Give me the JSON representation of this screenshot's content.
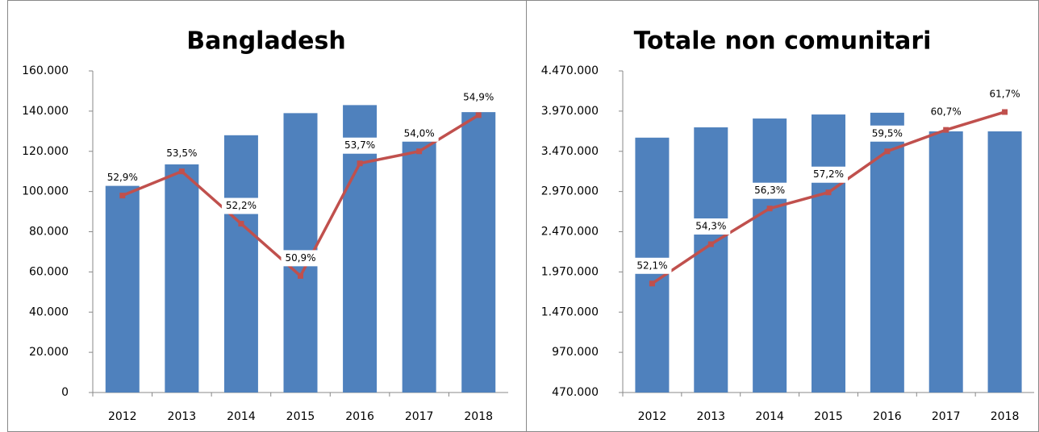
{
  "chart_data": [
    {
      "type": "bar-line",
      "title": "Bangladesh",
      "categories": [
        "2012",
        "2013",
        "2014",
        "2015",
        "2016",
        "2017",
        "2018"
      ],
      "series": [
        {
          "type": "bar",
          "color": "#4f81bd",
          "values": [
            107000,
            113500,
            128000,
            139000,
            143000,
            125000,
            139500
          ]
        },
        {
          "type": "line",
          "axis": "y2",
          "color": "#c0504d",
          "values": [
            52.9,
            53.5,
            52.2,
            50.9,
            53.7,
            54.0,
            54.9
          ],
          "value_labels": [
            "52,9%",
            "53,5%",
            "52,2%",
            "50,9%",
            "53,7%",
            "54,0%",
            "54,9%"
          ]
        }
      ],
      "ylim": [
        0,
        160000
      ],
      "yticks": [
        0,
        {
          "value": 20000,
          "label": "20.000"
        },
        {
          "value": 40000,
          "label": "40.000"
        },
        {
          "value": 60000,
          "label": "60.000"
        },
        {
          "value": 80000,
          "label": "80.000"
        },
        {
          "value": 100000,
          "label": "100.000"
        },
        {
          "value": 120000,
          "label": "120.000"
        },
        {
          "value": 140000,
          "label": "140.000"
        },
        {
          "value": 160000,
          "label": "160.000"
        }
      ],
      "y2lim": [
        48,
        56
      ]
    },
    {
      "type": "bar-line",
      "title": "Totale non comunitari",
      "categories": [
        "2012",
        "2013",
        "2014",
        "2015",
        "2016",
        "2017",
        "2018"
      ],
      "series": [
        {
          "type": "bar",
          "color": "#4f81bd",
          "values": [
            3640000,
            3768000,
            3878000,
            3928000,
            3950000,
            3718000,
            3718000
          ]
        },
        {
          "type": "line",
          "axis": "y2",
          "color": "#c0504d",
          "values": [
            52.1,
            54.3,
            56.3,
            57.2,
            59.5,
            60.7,
            61.7
          ],
          "value_labels": [
            "52,1%",
            "54,3%",
            "56,3%",
            "57,2%",
            "59,5%",
            "60,7%",
            "61,7%"
          ]
        }
      ],
      "ylim": [
        470000,
        4470000
      ],
      "yticks": [
        {
          "value": 470000,
          "label": "470.000"
        },
        {
          "value": 970000,
          "label": "970.000"
        },
        {
          "value": 1470000,
          "label": "1.470.000"
        },
        {
          "value": 1970000,
          "label": "1.970.000"
        },
        {
          "value": 2470000,
          "label": "2.470.000"
        },
        {
          "value": 2970000,
          "label": "2.970.000"
        },
        {
          "value": 3470000,
          "label": "3.470.000"
        },
        {
          "value": 3970000,
          "label": "3.970.000"
        },
        {
          "value": 4470000,
          "label": "4.470.000"
        }
      ],
      "y2lim": [
        46,
        64
      ]
    }
  ]
}
